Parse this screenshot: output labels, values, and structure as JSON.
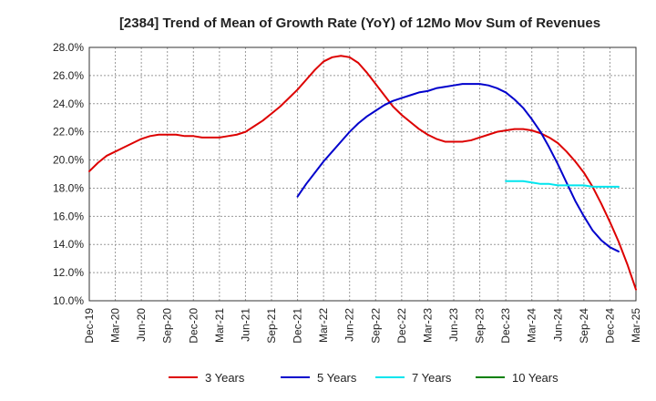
{
  "chart_data": {
    "type": "line",
    "title": "[2384]  Trend of Mean of Growth Rate (YoY) of 12Mo Mov Sum of Revenues",
    "xlabel": "",
    "ylabel": "",
    "ylim": [
      10.0,
      28.0
    ],
    "y_ticks": [
      10.0,
      12.0,
      14.0,
      16.0,
      18.0,
      20.0,
      22.0,
      24.0,
      26.0,
      28.0
    ],
    "y_tick_labels": [
      "10.0%",
      "12.0%",
      "14.0%",
      "16.0%",
      "18.0%",
      "20.0%",
      "22.0%",
      "24.0%",
      "26.0%",
      "28.0%"
    ],
    "x_tick_labels": [
      "Dec-19",
      "Mar-20",
      "Jun-20",
      "Sep-20",
      "Dec-20",
      "Mar-21",
      "Jun-21",
      "Sep-21",
      "Dec-21",
      "Mar-22",
      "Jun-22",
      "Sep-22",
      "Dec-22",
      "Mar-23",
      "Jun-23",
      "Sep-23",
      "Dec-23",
      "Mar-24",
      "Jun-24",
      "Sep-24",
      "Dec-24",
      "Mar-25"
    ],
    "x_start": "Dec-19",
    "x_unit": "months since Dec-19",
    "grid": true,
    "legend_position": "bottom",
    "series": [
      {
        "name": "3 Years",
        "color": "#dd0000",
        "points": [
          [
            0,
            19.2
          ],
          [
            1,
            19.8
          ],
          [
            2,
            20.3
          ],
          [
            3,
            20.6
          ],
          [
            4,
            20.9
          ],
          [
            5,
            21.2
          ],
          [
            6,
            21.5
          ],
          [
            7,
            21.7
          ],
          [
            8,
            21.8
          ],
          [
            9,
            21.8
          ],
          [
            10,
            21.8
          ],
          [
            11,
            21.7
          ],
          [
            12,
            21.7
          ],
          [
            13,
            21.6
          ],
          [
            14,
            21.6
          ],
          [
            15,
            21.6
          ],
          [
            16,
            21.7
          ],
          [
            17,
            21.8
          ],
          [
            18,
            22.0
          ],
          [
            19,
            22.4
          ],
          [
            20,
            22.8
          ],
          [
            21,
            23.3
          ],
          [
            22,
            23.8
          ],
          [
            23,
            24.4
          ],
          [
            24,
            25.0
          ],
          [
            25,
            25.7
          ],
          [
            26,
            26.4
          ],
          [
            27,
            27.0
          ],
          [
            28,
            27.3
          ],
          [
            29,
            27.4
          ],
          [
            30,
            27.3
          ],
          [
            31,
            26.9
          ],
          [
            32,
            26.2
          ],
          [
            33,
            25.4
          ],
          [
            34,
            24.6
          ],
          [
            35,
            23.8
          ],
          [
            36,
            23.2
          ],
          [
            37,
            22.7
          ],
          [
            38,
            22.2
          ],
          [
            39,
            21.8
          ],
          [
            40,
            21.5
          ],
          [
            41,
            21.3
          ],
          [
            42,
            21.3
          ],
          [
            43,
            21.3
          ],
          [
            44,
            21.4
          ],
          [
            45,
            21.6
          ],
          [
            46,
            21.8
          ],
          [
            47,
            22.0
          ],
          [
            48,
            22.1
          ],
          [
            49,
            22.2
          ],
          [
            50,
            22.2
          ],
          [
            51,
            22.1
          ],
          [
            52,
            21.9
          ],
          [
            53,
            21.6
          ],
          [
            54,
            21.2
          ],
          [
            55,
            20.6
          ],
          [
            56,
            19.9
          ],
          [
            57,
            19.1
          ],
          [
            58,
            18.1
          ],
          [
            59,
            16.9
          ],
          [
            60,
            15.6
          ],
          [
            61,
            14.2
          ],
          [
            62,
            12.6
          ],
          [
            63,
            10.8
          ]
        ]
      },
      {
        "name": "5 Years",
        "color": "#0000cc",
        "points": [
          [
            24,
            17.4
          ],
          [
            25,
            18.3
          ],
          [
            26,
            19.1
          ],
          [
            27,
            19.9
          ],
          [
            28,
            20.6
          ],
          [
            29,
            21.3
          ],
          [
            30,
            22.0
          ],
          [
            31,
            22.6
          ],
          [
            32,
            23.1
          ],
          [
            33,
            23.5
          ],
          [
            34,
            23.9
          ],
          [
            35,
            24.2
          ],
          [
            36,
            24.4
          ],
          [
            37,
            24.6
          ],
          [
            38,
            24.8
          ],
          [
            39,
            24.9
          ],
          [
            40,
            25.1
          ],
          [
            41,
            25.2
          ],
          [
            42,
            25.3
          ],
          [
            43,
            25.4
          ],
          [
            44,
            25.4
          ],
          [
            45,
            25.4
          ],
          [
            46,
            25.3
          ],
          [
            47,
            25.1
          ],
          [
            48,
            24.8
          ],
          [
            49,
            24.3
          ],
          [
            50,
            23.7
          ],
          [
            51,
            22.9
          ],
          [
            52,
            22.0
          ],
          [
            53,
            20.9
          ],
          [
            54,
            19.7
          ],
          [
            55,
            18.4
          ],
          [
            56,
            17.1
          ],
          [
            57,
            16.0
          ],
          [
            58,
            15.0
          ],
          [
            59,
            14.3
          ],
          [
            60,
            13.8
          ],
          [
            61,
            13.5
          ]
        ]
      },
      {
        "name": "7 Years",
        "color": "#00e5ee",
        "points": [
          [
            48,
            18.5
          ],
          [
            49,
            18.5
          ],
          [
            50,
            18.5
          ],
          [
            51,
            18.4
          ],
          [
            52,
            18.3
          ],
          [
            53,
            18.3
          ],
          [
            54,
            18.2
          ],
          [
            55,
            18.2
          ],
          [
            56,
            18.2
          ],
          [
            57,
            18.2
          ],
          [
            58,
            18.1
          ],
          [
            59,
            18.1
          ],
          [
            60,
            18.1
          ],
          [
            61,
            18.1
          ]
        ]
      },
      {
        "name": "10 Years",
        "color": "#008000",
        "points": []
      }
    ]
  }
}
